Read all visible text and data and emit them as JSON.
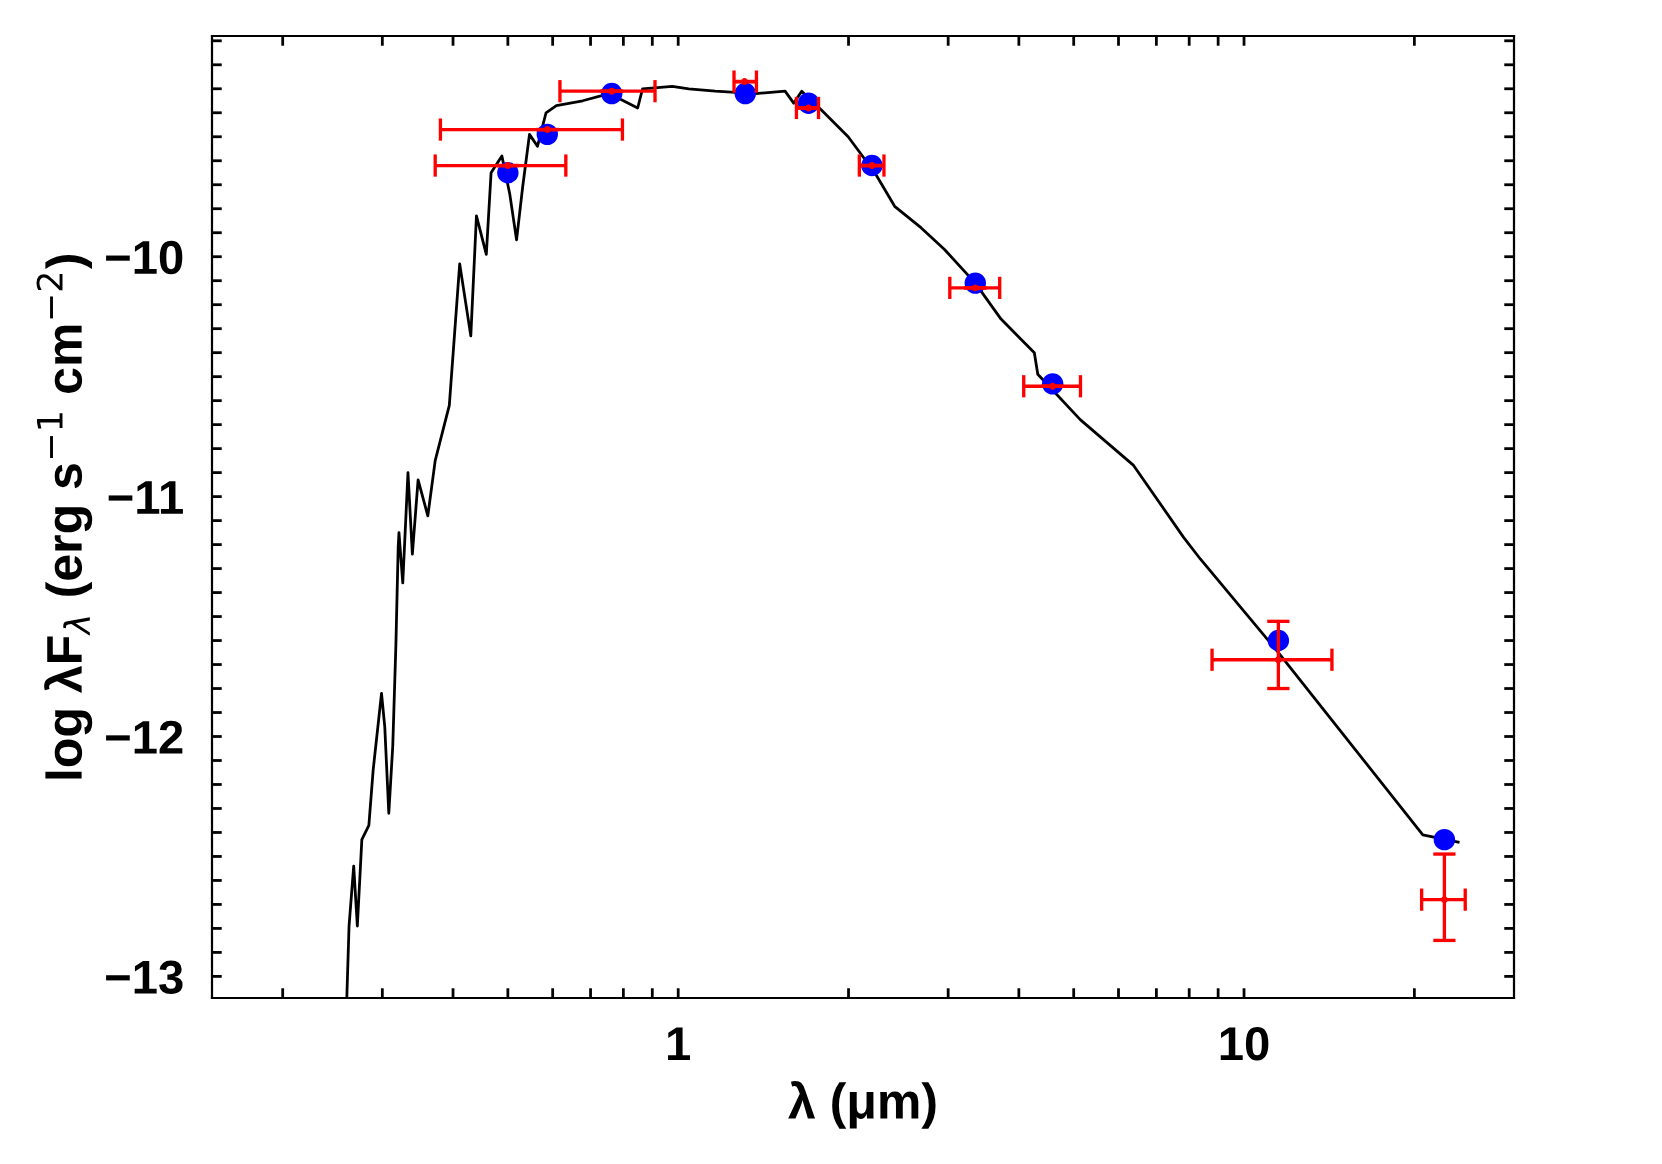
{
  "chart_data": {
    "type": "line",
    "xlabel": "λ (μm)",
    "ylabel": "log λF$_{λ}$ (erg s$^{−1}$ cm$^{−2}$)",
    "log": "x",
    "xlim": [
      0.15,
      30
    ],
    "ylim": [
      -13.09,
      -9.08
    ],
    "xticks": [
      {
        "value": 0.2,
        "label": null
      },
      {
        "value": 0.3,
        "label": null
      },
      {
        "value": 0.4,
        "label": null
      },
      {
        "value": 0.5,
        "label": null
      },
      {
        "value": 0.6,
        "label": null
      },
      {
        "value": 0.7,
        "label": null
      },
      {
        "value": 0.8,
        "label": null
      },
      {
        "value": 0.9,
        "label": null
      },
      1,
      {
        "value": 2,
        "label": null
      },
      {
        "value": 3,
        "label": null
      },
      {
        "value": 4,
        "label": null
      },
      {
        "value": 5,
        "label": null
      },
      {
        "value": 6,
        "label": null
      },
      {
        "value": 7,
        "label": null
      },
      {
        "value": 8,
        "label": null
      },
      {
        "value": 9,
        "label": null
      },
      10,
      {
        "value": 20,
        "label": null
      }
    ],
    "yticks": [
      {
        "value": -9.1,
        "label": null
      },
      {
        "value": -9.2,
        "label": null
      },
      {
        "value": -9.3,
        "label": null
      },
      {
        "value": -9.4,
        "label": null
      },
      {
        "value": -9.5,
        "label": null
      },
      {
        "value": -9.6,
        "label": null
      },
      {
        "value": -9.7,
        "label": null
      },
      {
        "value": -9.8,
        "label": null
      },
      {
        "value": -9.9,
        "label": null
      },
      -10,
      {
        "value": -10.1,
        "label": null
      },
      {
        "value": -10.2,
        "label": null
      },
      {
        "value": -10.3,
        "label": null
      },
      {
        "value": -10.4,
        "label": null
      },
      {
        "value": -10.5,
        "label": null
      },
      {
        "value": -10.6,
        "label": null
      },
      {
        "value": -10.7,
        "label": null
      },
      {
        "value": -10.8,
        "label": null
      },
      {
        "value": -10.9,
        "label": null
      },
      -11,
      {
        "value": -11.1,
        "label": null
      },
      {
        "value": -11.2,
        "label": null
      },
      {
        "value": -11.3,
        "label": null
      },
      {
        "value": -11.4,
        "label": null
      },
      {
        "value": -11.5,
        "label": null
      },
      {
        "value": -11.6,
        "label": null
      },
      {
        "value": -11.7,
        "label": null
      },
      {
        "value": -11.8,
        "label": null
      },
      {
        "value": -11.9,
        "label": null
      },
      -12,
      {
        "value": -12.1,
        "label": null
      },
      {
        "value": -12.2,
        "label": null
      },
      {
        "value": -12.3,
        "label": null
      },
      {
        "value": -12.4,
        "label": null
      },
      {
        "value": -12.5,
        "label": null
      },
      {
        "value": -12.6,
        "label": null
      },
      {
        "value": -12.7,
        "label": null
      },
      {
        "value": -12.8,
        "label": null
      },
      {
        "value": -12.9,
        "label": null
      },
      -13
    ],
    "grid": false,
    "legend": false,
    "series": [
      {
        "color": "#000000",
        "marker": "none",
        "line_style": "solid",
        "x": [
          0.2597,
          0.262,
          0.267,
          0.271,
          0.276,
          0.284,
          0.289,
          0.299,
          0.303,
          0.308,
          0.313,
          0.317,
          0.32,
          0.321,
          0.326,
          0.333,
          0.339,
          0.347,
          0.361,
          0.372,
          0.394,
          0.411,
          0.43,
          0.44,
          0.458,
          0.467,
          0.488,
          0.504,
          0.518,
          0.531,
          0.546,
          0.564,
          0.584,
          0.609,
          0.678,
          0.755,
          0.848,
          0.865,
          0.976,
          1.044,
          1.163,
          1.368,
          1.545,
          1.6,
          1.653,
          1.793,
          1.997,
          2.226,
          2.413,
          2.689,
          2.956,
          3.35,
          3.72,
          4.26,
          4.32,
          5.14,
          6.38,
          7.82,
          8.37,
          11.5,
          20.7,
          23.9
        ],
        "values": [
          -13.08,
          -12.79,
          -12.54,
          -12.79,
          -12.43,
          -12.37,
          -12.14,
          -11.82,
          -11.96,
          -12.32,
          -12.04,
          -11.62,
          -11.21,
          -11.15,
          -11.36,
          -10.9,
          -11.24,
          -10.93,
          -11.08,
          -10.85,
          -10.62,
          -10.03,
          -10.33,
          -9.83,
          -9.99,
          -9.65,
          -9.58,
          -9.74,
          -9.93,
          -9.71,
          -9.49,
          -9.54,
          -9.4,
          -9.37,
          -9.35,
          -9.32,
          -9.38,
          -9.3,
          -9.29,
          -9.3,
          -9.31,
          -9.32,
          -9.31,
          -9.36,
          -9.31,
          -9.39,
          -9.5,
          -9.65,
          -9.79,
          -9.88,
          -9.97,
          -10.11,
          -10.26,
          -10.4,
          -10.49,
          -10.68,
          -10.87,
          -11.17,
          -11.26,
          -11.65,
          -12.41,
          -12.44
        ]
      },
      {
        "type": "scatter",
        "color": "#ff0000",
        "marker": "none",
        "x": [
          0.5,
          0.587,
          0.763,
          1.31,
          1.7,
          2.2,
          3.35,
          4.59,
          11.5,
          22.6
        ],
        "values": [
          -9.62,
          -9.47,
          -9.31,
          -9.27,
          -9.38,
          -9.62,
          -10.13,
          -10.54,
          -11.68,
          -12.68
        ],
        "errors": [
          null,
          null,
          null,
          null,
          null,
          null,
          null,
          null,
          [
            -11.8,
            -11.52
          ],
          [
            -12.85,
            -12.49
          ]
        ],
        "xerrors": [
          [
            0.372,
            0.633
          ],
          [
            0.38,
            0.797
          ],
          [
            0.618,
            0.91
          ],
          [
            1.255,
            1.375
          ],
          [
            1.618,
            1.77
          ],
          [
            2.09,
            2.31
          ],
          [
            3.02,
            3.7
          ],
          [
            4.08,
            5.14
          ],
          [
            8.78,
            14.3
          ],
          [
            20.6,
            24.6
          ]
        ]
      },
      {
        "type": "scatter",
        "color": "#0000ff",
        "marker": "circle",
        "x": [
          0.5,
          0.587,
          0.763,
          1.314,
          1.7,
          2.2,
          3.35,
          4.59,
          11.5,
          22.6
        ],
        "values": [
          -9.65,
          -9.49,
          -9.32,
          -9.32,
          -9.36,
          -9.62,
          -10.11,
          -10.53,
          -11.6,
          -12.43
        ]
      }
    ]
  }
}
